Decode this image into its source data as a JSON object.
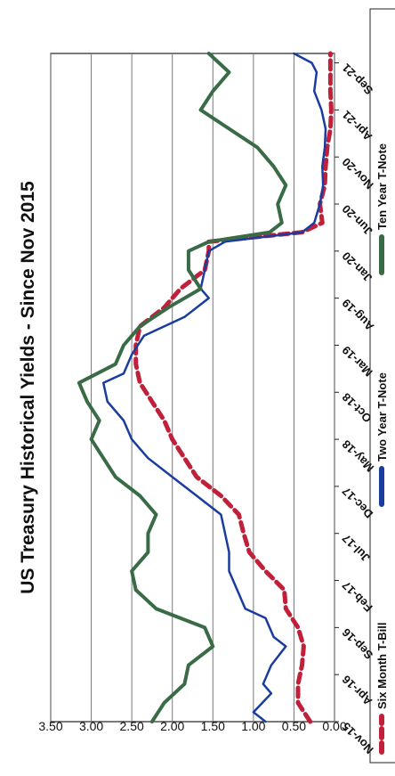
{
  "chart_data": {
    "type": "line",
    "title": "US Treasury Historical Yields - Since Nov 2015",
    "xlabel": "",
    "ylabel": "",
    "ylim": [
      0,
      3.5
    ],
    "y_ticks": [
      "0.00",
      "0.50",
      "1.00",
      "1.50",
      "2.00",
      "2.50",
      "3.00",
      "3.50"
    ],
    "x_ticks": [
      "Nov-15",
      "Apr-16",
      "Sep-16",
      "Feb-17",
      "Jul-17",
      "Dec-17",
      "May-18",
      "Oct-18",
      "Mar-19",
      "Aug-19",
      "Jan-20",
      "Jun-20",
      "Nov-20",
      "Apr-21",
      "Sep-21"
    ],
    "grid": "horizontal",
    "legend": "bottom",
    "series": [
      {
        "name": "Six Month T-Bill",
        "color": "#c0203a",
        "style": "dashed",
        "x": [
          "Nov-15",
          "Jan-16",
          "Mar-16",
          "May-16",
          "Jul-16",
          "Sep-16",
          "Nov-16",
          "Jan-17",
          "Mar-17",
          "May-17",
          "Jul-17",
          "Sep-17",
          "Nov-17",
          "Jan-18",
          "Mar-18",
          "May-18",
          "Jul-18",
          "Sep-18",
          "Nov-18",
          "Jan-19",
          "Mar-19",
          "May-19",
          "Jul-19",
          "Sep-19",
          "Nov-19",
          "Jan-20",
          "Feb-20",
          "Mar-20",
          "Apr-20",
          "Jun-20",
          "Aug-20",
          "Oct-20",
          "Dec-20",
          "Feb-21",
          "Apr-21",
          "Jun-21",
          "Aug-21",
          "Oct-21"
        ],
        "values": [
          0.3,
          0.45,
          0.45,
          0.4,
          0.38,
          0.45,
          0.6,
          0.62,
          0.85,
          1.05,
          1.12,
          1.18,
          1.4,
          1.7,
          1.85,
          2.0,
          2.1,
          2.25,
          2.4,
          2.45,
          2.45,
          2.4,
          2.1,
          1.9,
          1.6,
          1.55,
          1.55,
          0.4,
          0.15,
          0.18,
          0.12,
          0.11,
          0.09,
          0.05,
          0.04,
          0.05,
          0.05,
          0.05
        ]
      },
      {
        "name": "Two Year T-Note",
        "color": "#1a3c9e",
        "style": "solid",
        "x": [
          "Nov-15",
          "Dec-15",
          "Feb-16",
          "Mar-16",
          "May-16",
          "Jul-16",
          "Aug-16",
          "Oct-16",
          "Nov-16",
          "Jan-17",
          "Mar-17",
          "May-17",
          "Jul-17",
          "Sep-17",
          "Nov-17",
          "Jan-18",
          "Mar-18",
          "May-18",
          "Jul-18",
          "Sep-18",
          "Nov-18",
          "Dec-18",
          "Feb-19",
          "Apr-19",
          "Jun-19",
          "Aug-19",
          "Sep-19",
          "Nov-19",
          "Jan-20",
          "Feb-20",
          "Mar-20",
          "Apr-20",
          "Jun-20",
          "Aug-20",
          "Oct-20",
          "Dec-20",
          "Feb-21",
          "Apr-21",
          "Jun-21",
          "Aug-21",
          "Sep-21",
          "Oct-21"
        ],
        "values": [
          0.85,
          1.0,
          0.78,
          0.88,
          0.78,
          0.6,
          0.75,
          0.85,
          1.1,
          1.2,
          1.3,
          1.3,
          1.35,
          1.4,
          1.7,
          2.0,
          2.3,
          2.5,
          2.6,
          2.8,
          2.85,
          2.6,
          2.5,
          2.35,
          1.85,
          1.55,
          1.65,
          1.6,
          1.55,
          1.35,
          0.4,
          0.25,
          0.18,
          0.14,
          0.15,
          0.12,
          0.11,
          0.16,
          0.25,
          0.22,
          0.28,
          0.5
        ]
      },
      {
        "name": "Ten Year T-Note",
        "color": "#3a6b47",
        "style": "solid",
        "x": [
          "Nov-15",
          "Jan-16",
          "Mar-16",
          "May-16",
          "Jul-16",
          "Sep-16",
          "Nov-16",
          "Jan-17",
          "Mar-17",
          "May-17",
          "Jul-17",
          "Sep-17",
          "Nov-17",
          "Jan-18",
          "Mar-18",
          "May-18",
          "Jul-18",
          "Sep-18",
          "Nov-18",
          "Jan-19",
          "Mar-19",
          "May-19",
          "Jul-19",
          "Sep-19",
          "Nov-19",
          "Jan-20",
          "Feb-20",
          "Mar-20",
          "Apr-20",
          "Jun-20",
          "Aug-20",
          "Oct-20",
          "Dec-20",
          "Feb-21",
          "Apr-21",
          "Jun-21",
          "Aug-21",
          "Oct-21"
        ],
        "values": [
          2.25,
          2.1,
          1.85,
          1.8,
          1.5,
          1.6,
          2.2,
          2.45,
          2.5,
          2.3,
          2.3,
          2.2,
          2.4,
          2.7,
          2.85,
          3.0,
          2.9,
          3.05,
          3.15,
          2.7,
          2.6,
          2.4,
          2.05,
          1.65,
          1.8,
          1.8,
          1.55,
          0.8,
          0.65,
          0.7,
          0.6,
          0.75,
          0.95,
          1.3,
          1.65,
          1.5,
          1.3,
          1.55
        ]
      }
    ]
  }
}
